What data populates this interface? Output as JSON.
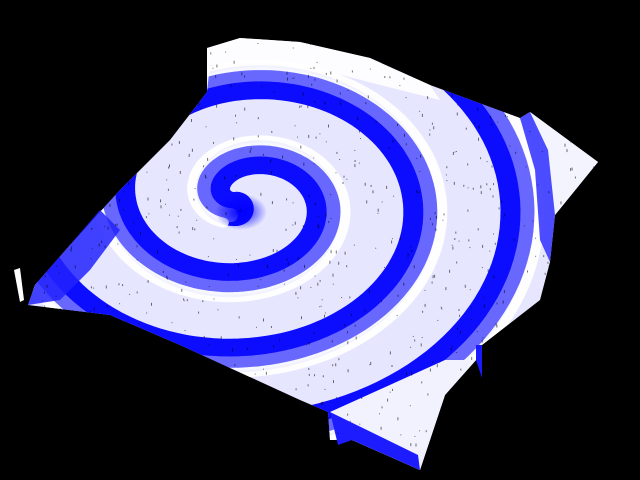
{
  "scene": {
    "subject": "spiral-surface",
    "background_color": "#000000",
    "colors": {
      "shadow": "#0000ff",
      "mid": "#7f7fff",
      "highlight": "#ffffff",
      "speckle": "#000000"
    }
  }
}
